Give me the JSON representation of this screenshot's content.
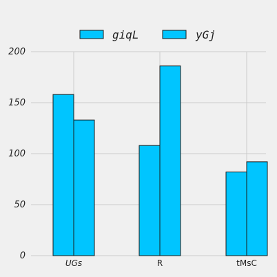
{
  "chart_data": {
    "type": "bar",
    "categories": [
      "UGs",
      "R",
      "tMsC"
    ],
    "series": [
      {
        "name": "giqL",
        "values": [
          158,
          108,
          82
        ],
        "color": "#00c5ff"
      },
      {
        "name": "yGj",
        "values": [
          133,
          186,
          92
        ],
        "color": "#00c5ff"
      }
    ],
    "yticks": [
      "0",
      "50",
      "100",
      "150",
      "200"
    ],
    "ylim": [
      0,
      200
    ],
    "grid": true,
    "legend_position": "top-center",
    "title": "",
    "xlabel": "",
    "ylabel": ""
  }
}
